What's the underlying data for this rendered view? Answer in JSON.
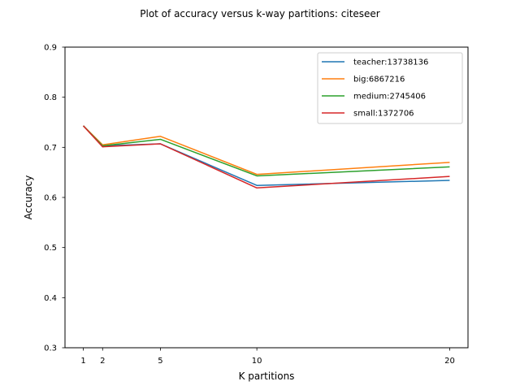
{
  "chart_data": {
    "type": "line",
    "title": "Plot of accuracy versus k-way partitions: citeseer",
    "xlabel": "K partitions",
    "ylabel": "Accuracy",
    "x": [
      1,
      2,
      5,
      10,
      20
    ],
    "xticks": [
      1,
      2,
      5,
      10,
      20
    ],
    "yticks": [
      0.3,
      0.4,
      0.5,
      0.6,
      0.7,
      0.8,
      0.9
    ],
    "ylim": [
      0.3,
      0.9
    ],
    "xlim": [
      0.05,
      20.95
    ],
    "grid": false,
    "legend_position": "top-right",
    "series": [
      {
        "name": "teacher:13738136",
        "color": "#1f77b4",
        "values": [
          0.743,
          0.703,
          0.707,
          0.624,
          0.634
        ]
      },
      {
        "name": "big:6867216",
        "color": "#ff7f0e",
        "values": [
          0.743,
          0.705,
          0.722,
          0.646,
          0.67
        ]
      },
      {
        "name": "medium:2745406",
        "color": "#2ca02c",
        "values": [
          0.743,
          0.703,
          0.716,
          0.643,
          0.661
        ]
      },
      {
        "name": "small:1372706",
        "color": "#d62728",
        "values": [
          0.743,
          0.701,
          0.707,
          0.619,
          0.642
        ]
      }
    ]
  }
}
